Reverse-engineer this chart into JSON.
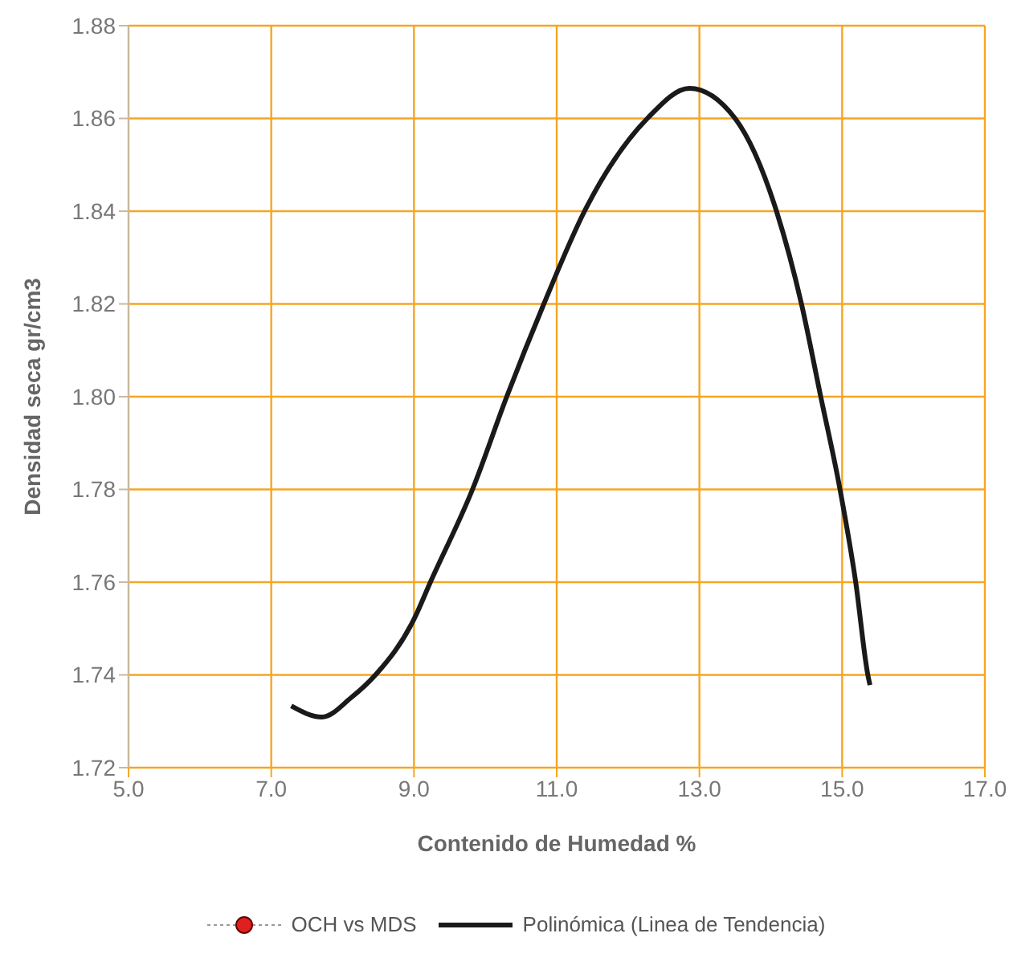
{
  "chart_data": {
    "type": "line",
    "xlabel": "Contenido de Humedad %",
    "ylabel": "Densidad seca gr/cm3",
    "xlim": [
      5,
      17
    ],
    "xticks": [
      {
        "value": 5,
        "label": "5.0"
      },
      {
        "value": 7,
        "label": "7.0"
      },
      {
        "value": 9,
        "label": "9.0"
      },
      {
        "value": 11,
        "label": "11.0"
      },
      {
        "value": 13,
        "label": "13.0"
      },
      {
        "value": 15,
        "label": "15.0"
      },
      {
        "value": 17,
        "label": "17.0"
      }
    ],
    "ylim": [
      1.72,
      1.88
    ],
    "yticks": [
      1.72,
      1.74,
      1.76,
      1.78,
      {
        "value": 1.8,
        "label": "1.80"
      },
      1.82,
      1.84,
      1.86,
      1.88
    ],
    "grid": true,
    "legend": "bottom",
    "series": [
      {
        "name": "OCH vs MDS",
        "type": "scatter",
        "color": "#e02020",
        "marker": "circle",
        "line_style": "dotted"
      },
      {
        "name": "Polinómica (Linea de Tendencia)",
        "color": "#1a1a1a",
        "marker": "none",
        "line_style": "solid",
        "x": [
          7.28,
          7.71,
          8.12,
          8.46,
          9.0,
          9.23,
          9.82,
          10.3,
          10.82,
          11.39,
          12.27,
          12.86,
          13.5,
          14.08,
          14.43,
          14.7,
          14.97,
          15.19,
          15.36,
          15.39
        ],
        "values": [
          1.7333,
          1.7309,
          1.7351,
          1.74,
          1.752,
          1.76,
          1.78,
          1.8,
          1.82,
          1.84,
          1.86,
          1.8665,
          1.86,
          1.84,
          1.82,
          1.8,
          1.78,
          1.76,
          1.74,
          1.7378
        ]
      }
    ]
  }
}
